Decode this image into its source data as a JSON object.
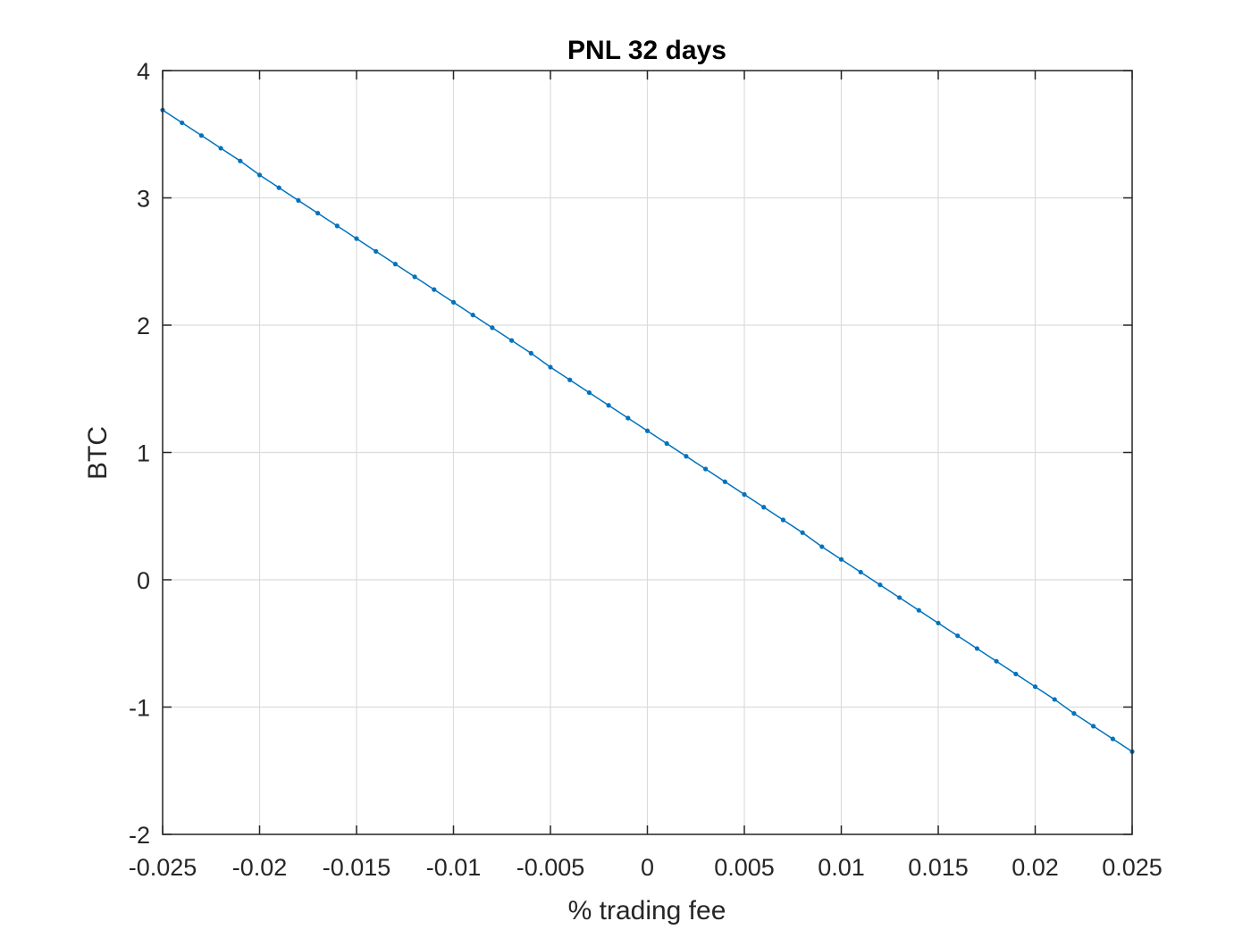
{
  "chart_data": {
    "type": "line",
    "title": "PNL 32 days",
    "xlabel": "% trading fee",
    "ylabel": "BTC",
    "xlim": [
      -0.025,
      0.025
    ],
    "ylim": [
      -2,
      4
    ],
    "grid": true,
    "x_ticks": [
      "-0.025",
      "-0.02",
      "-0.015",
      "-0.01",
      "-0.005",
      "0",
      "0.005",
      "0.01",
      "0.015",
      "0.02",
      "0.025"
    ],
    "y_ticks": [
      "-2",
      "-1",
      "0",
      "1",
      "2",
      "3",
      "4"
    ],
    "series": [
      {
        "color": "#0072BD",
        "marker": "dot",
        "x": [
          -0.025,
          -0.024,
          -0.023,
          -0.022,
          -0.021,
          -0.02,
          -0.019,
          -0.018,
          -0.017,
          -0.016,
          -0.015,
          -0.014,
          -0.013,
          -0.012,
          -0.011,
          -0.01,
          -0.009,
          -0.008,
          -0.007,
          -0.006,
          -0.005,
          -0.004,
          -0.003,
          -0.002,
          -0.001,
          0,
          0.001,
          0.002,
          0.003,
          0.004,
          0.005,
          0.006,
          0.007,
          0.008,
          0.009,
          0.01,
          0.011,
          0.012,
          0.013,
          0.014,
          0.015,
          0.016,
          0.017,
          0.018,
          0.019,
          0.02,
          0.021,
          0.022,
          0.023,
          0.024,
          0.025
        ],
        "y": [
          3.69,
          3.59,
          3.49,
          3.39,
          3.29,
          3.18,
          3.08,
          2.98,
          2.88,
          2.78,
          2.68,
          2.58,
          2.48,
          2.38,
          2.28,
          2.18,
          2.08,
          1.98,
          1.88,
          1.78,
          1.67,
          1.57,
          1.47,
          1.37,
          1.27,
          1.17,
          1.07,
          0.97,
          0.87,
          0.77,
          0.67,
          0.57,
          0.47,
          0.37,
          0.26,
          0.16,
          0.06,
          -0.04,
          -0.14,
          -0.24,
          -0.34,
          -0.44,
          -0.54,
          -0.64,
          -0.74,
          -0.84,
          -0.94,
          -1.05,
          -1.15,
          -1.25,
          -1.35
        ]
      }
    ]
  }
}
